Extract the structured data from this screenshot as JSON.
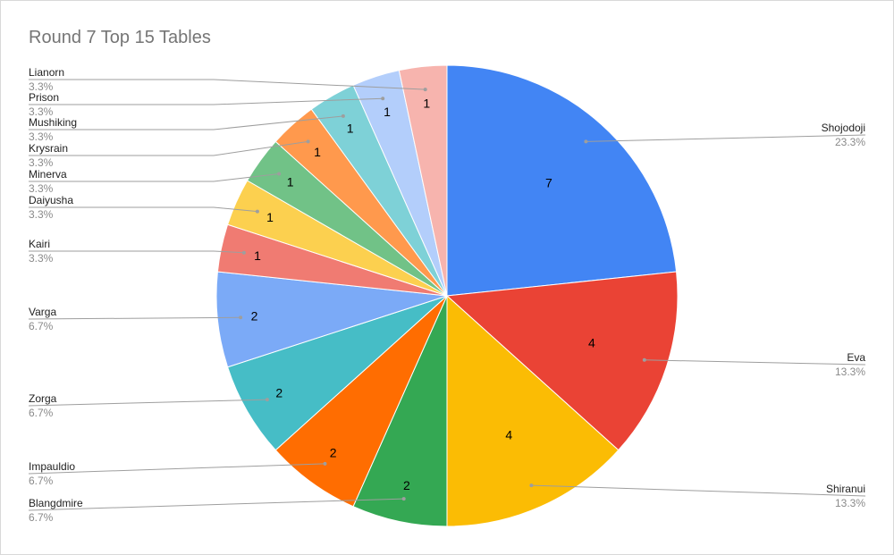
{
  "chart_data": {
    "type": "pie",
    "title": "Round 7 Top 15 Tables",
    "slices": [
      {
        "label": "Shojodoji",
        "value": 7,
        "percent": "23.3%",
        "color": "#4285f4"
      },
      {
        "label": "Eva",
        "value": 4,
        "percent": "13.3%",
        "color": "#ea4335"
      },
      {
        "label": "Shiranui",
        "value": 4,
        "percent": "13.3%",
        "color": "#fbbc04"
      },
      {
        "label": "Blangdmire",
        "value": 2,
        "percent": "6.7%",
        "color": "#34a853"
      },
      {
        "label": "Impauldio",
        "value": 2,
        "percent": "6.7%",
        "color": "#ff6d01"
      },
      {
        "label": "Zorga",
        "value": 2,
        "percent": "6.7%",
        "color": "#46bdc6"
      },
      {
        "label": "Varga",
        "value": 2,
        "percent": "6.7%",
        "color": "#7baaf7"
      },
      {
        "label": "Kairi",
        "value": 1,
        "percent": "3.3%",
        "color": "#f07b72"
      },
      {
        "label": "Daiyusha",
        "value": 1,
        "percent": "3.3%",
        "color": "#fcd04f"
      },
      {
        "label": "Minerva",
        "value": 1,
        "percent": "3.3%",
        "color": "#71c287"
      },
      {
        "label": "Krysrain",
        "value": 1,
        "percent": "3.3%",
        "color": "#ff994d"
      },
      {
        "label": "Mushiking",
        "value": 1,
        "percent": "3.3%",
        "color": "#7ed1d7"
      },
      {
        "label": "Prison",
        "value": 1,
        "percent": "3.3%",
        "color": "#b3cefb"
      },
      {
        "label": "Lianorn",
        "value": 1,
        "percent": "3.3%",
        "color": "#f7b4ae"
      }
    ],
    "legend": "callout-labels"
  }
}
